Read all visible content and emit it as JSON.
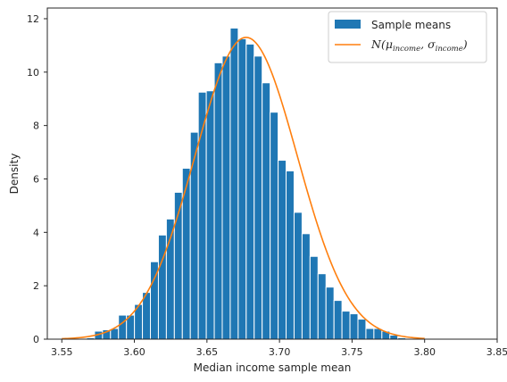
{
  "chart_data": {
    "type": "bar",
    "subtype": "histogram_with_density_curve",
    "xlabel": "Median income sample mean",
    "ylabel": "Density",
    "xlim": [
      3.54,
      3.85
    ],
    "ylim": [
      0,
      12.4
    ],
    "xticks": [
      3.55,
      3.6,
      3.65,
      3.7,
      3.75,
      3.8,
      3.85
    ],
    "xtick_labels": [
      "3.55",
      "3.60",
      "3.65",
      "3.70",
      "3.75",
      "3.80",
      "3.85"
    ],
    "yticks": [
      0,
      2,
      4,
      6,
      8,
      10,
      12
    ],
    "ytick_labels": [
      "0",
      "2",
      "4",
      "6",
      "8",
      "10",
      "12"
    ],
    "grid": false,
    "legend_position": "top-right",
    "bin_width": 0.0055,
    "series": [
      {
        "name": "Sample means",
        "kind": "histogram",
        "color": "#1f77b4",
        "bin_centers": [
          3.5698,
          3.5753,
          3.5808,
          3.5863,
          3.5918,
          3.5973,
          3.6028,
          3.6083,
          3.6138,
          3.6193,
          3.6248,
          3.6303,
          3.6358,
          3.6413,
          3.6468,
          3.6523,
          3.6578,
          3.6633,
          3.6688,
          3.6743,
          3.6798,
          3.6853,
          3.6908,
          3.6963,
          3.7018,
          3.7073,
          3.7128,
          3.7183,
          3.7238,
          3.7293,
          3.7348,
          3.7403,
          3.7458,
          3.7513,
          3.7568,
          3.7623,
          3.7678,
          3.7733,
          3.7788,
          3.7843
        ],
        "values": [
          0.05,
          0.3,
          0.35,
          0.4,
          0.9,
          0.9,
          1.3,
          1.75,
          2.9,
          3.9,
          4.5,
          5.5,
          6.4,
          7.75,
          9.25,
          9.3,
          10.35,
          10.6,
          11.65,
          11.25,
          11.05,
          10.6,
          9.6,
          8.5,
          6.7,
          6.3,
          4.75,
          3.95,
          3.1,
          2.45,
          1.95,
          1.45,
          1.05,
          0.95,
          0.75,
          0.4,
          0.4,
          0.3,
          0.15,
          0.05
        ]
      },
      {
        "name": "N(μincome, σincome)",
        "kind": "line",
        "color": "#ff7f0e",
        "mean": 3.677,
        "std": 0.0353,
        "x_range": [
          3.55,
          3.8
        ]
      }
    ]
  }
}
